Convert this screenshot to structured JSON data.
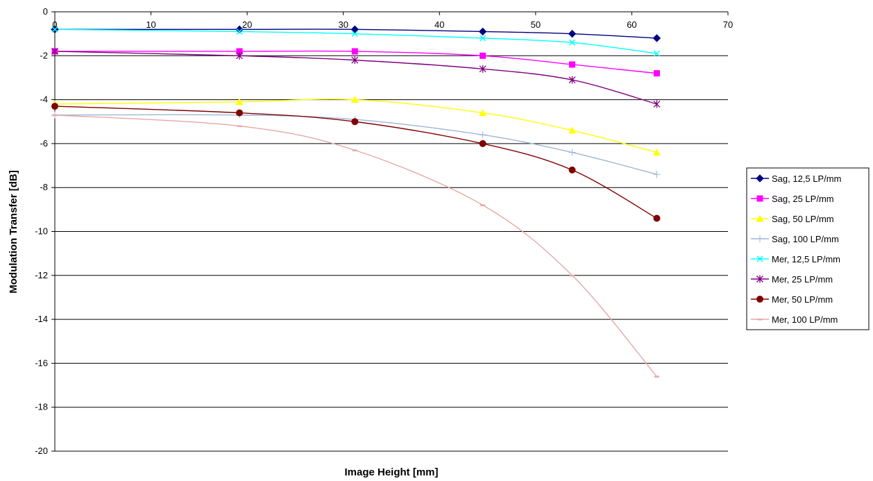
{
  "chart_data": {
    "type": "line",
    "title": "",
    "xlabel": "Image Height [mm]",
    "ylabel": "Modulation Transfer [dB]",
    "xlim": [
      0,
      70
    ],
    "ylim": [
      -20,
      0
    ],
    "x_ticks": [
      0,
      10,
      20,
      30,
      40,
      50,
      60,
      70
    ],
    "y_ticks": [
      0,
      -2,
      -4,
      -6,
      -8,
      -10,
      -12,
      -14,
      -16,
      -18,
      -20
    ],
    "x_tick_labels": [
      "0",
      "10",
      "20",
      "30",
      "40",
      "50",
      "60",
      "70"
    ],
    "y_tick_labels": [
      "0",
      "-2",
      "-4",
      "-6",
      "-8",
      "-10",
      "-12",
      "-14",
      "-16",
      "-18",
      "-20"
    ],
    "x_axis_position": "top",
    "grid": "horizontal",
    "legend_position": "right",
    "x": [
      0,
      19.2,
      31.2,
      44.5,
      53.8,
      62.6
    ],
    "series": [
      {
        "name": "Sag, 12,5 LP/mm",
        "color": "#000080",
        "marker": "diamond",
        "values": [
          -0.8,
          -0.8,
          -0.8,
          -0.9,
          -1.0,
          -1.2
        ]
      },
      {
        "name": "Sag, 25 LP/mm",
        "color": "#ff00ff",
        "marker": "square",
        "values": [
          -1.8,
          -1.8,
          -1.8,
          -2.0,
          -2.4,
          -2.8
        ]
      },
      {
        "name": "Sag, 50 LP/mm",
        "color": "#ffff00",
        "marker": "triangle",
        "values": [
          -4.2,
          -4.1,
          -4.0,
          -4.6,
          -5.4,
          -6.4
        ]
      },
      {
        "name": "Sag, 100 LP/mm",
        "color": "#9db5d6",
        "marker": "plus",
        "values": [
          -4.7,
          -4.7,
          -4.9,
          -5.6,
          -6.4,
          -7.4
        ]
      },
      {
        "name": "Mer, 12,5 LP/mm",
        "color": "#00ffff",
        "marker": "x",
        "values": [
          -0.8,
          -0.9,
          -1.0,
          -1.2,
          -1.4,
          -1.9
        ]
      },
      {
        "name": "Mer, 25 LP/mm",
        "color": "#800080",
        "marker": "star",
        "values": [
          -1.8,
          -2.0,
          -2.2,
          -2.6,
          -3.1,
          -4.2
        ]
      },
      {
        "name": "Mer, 50 LP/mm",
        "color": "#800000",
        "marker": "circle",
        "values": [
          -4.3,
          -4.6,
          -5.0,
          -6.0,
          -7.2,
          -9.4
        ]
      },
      {
        "name": "Mer, 100 LP/mm",
        "color": "#e6a8a8",
        "marker": "dash",
        "values": [
          -4.7,
          -5.2,
          -6.3,
          -8.8,
          -12.0,
          -16.6
        ]
      }
    ]
  }
}
